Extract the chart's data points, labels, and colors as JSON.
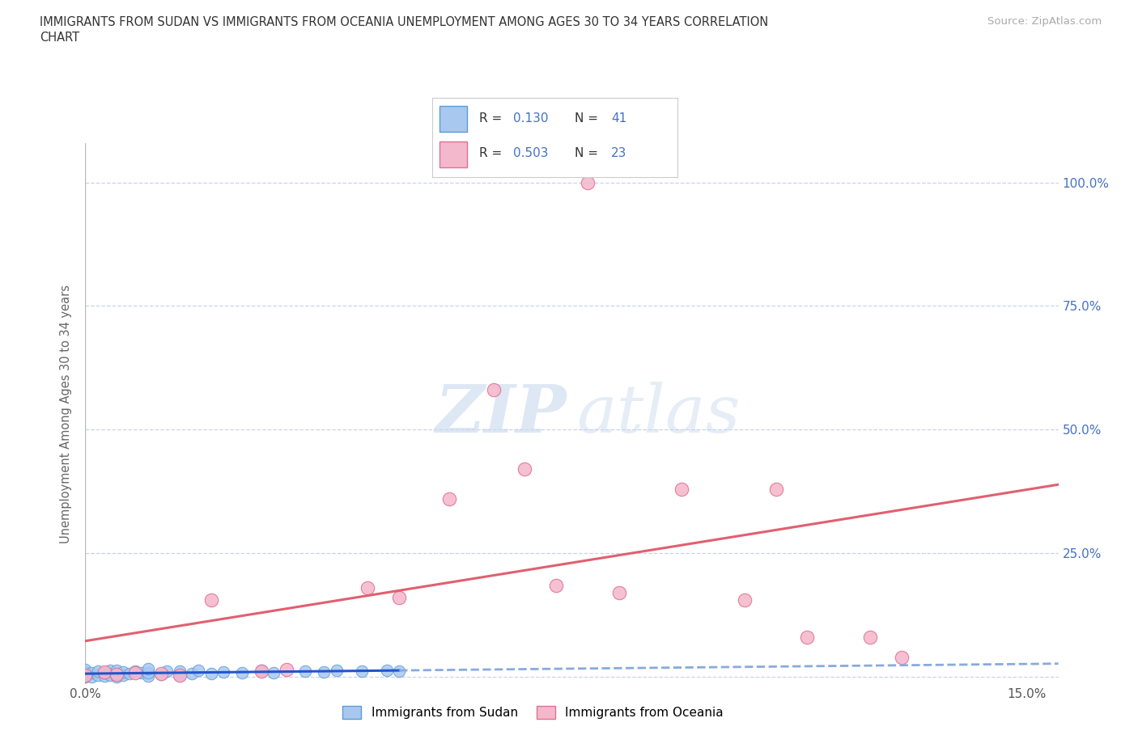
{
  "title_line1": "IMMIGRANTS FROM SUDAN VS IMMIGRANTS FROM OCEANIA UNEMPLOYMENT AMONG AGES 30 TO 34 YEARS CORRELATION",
  "title_line2": "CHART",
  "source_text": "Source: ZipAtlas.com",
  "ylabel": "Unemployment Among Ages 30 to 34 years",
  "xlim": [
    0.0,
    0.155
  ],
  "ylim": [
    -0.015,
    1.08
  ],
  "sudan_color": "#a8c8f0",
  "oceania_color": "#f4b8cc",
  "sudan_edge_color": "#5b9bd5",
  "oceania_edge_color": "#e07090",
  "trendline_sudan_solid_color": "#2255cc",
  "trendline_sudan_dash_color": "#88aadd",
  "trendline_oceania_color": "#e06070",
  "watermark_zip_color": "#c8d8ee",
  "watermark_atlas_color": "#c8d8ee",
  "r_sudan": 0.13,
  "n_sudan": 41,
  "r_oceania": 0.503,
  "n_oceania": 23,
  "sudan_x": [
    0.0,
    0.0,
    0.0,
    0.0,
    0.0,
    0.001,
    0.001,
    0.002,
    0.002,
    0.003,
    0.003,
    0.004,
    0.004,
    0.005,
    0.005,
    0.005,
    0.006,
    0.006,
    0.007,
    0.008,
    0.009,
    0.01,
    0.01,
    0.01,
    0.012,
    0.013,
    0.015,
    0.015,
    0.017,
    0.018,
    0.02,
    0.022,
    0.025,
    0.028,
    0.03,
    0.035,
    0.038,
    0.04,
    0.044,
    0.048,
    0.05
  ],
  "sudan_y": [
    0.0,
    0.003,
    0.006,
    0.01,
    0.015,
    0.001,
    0.008,
    0.003,
    0.012,
    0.002,
    0.009,
    0.004,
    0.013,
    0.0,
    0.007,
    0.014,
    0.003,
    0.01,
    0.006,
    0.011,
    0.008,
    0.002,
    0.009,
    0.016,
    0.005,
    0.012,
    0.004,
    0.011,
    0.007,
    0.013,
    0.006,
    0.01,
    0.008,
    0.014,
    0.009,
    0.012,
    0.01,
    0.013,
    0.011,
    0.014,
    0.012
  ],
  "oceania_x": [
    0.0,
    0.003,
    0.005,
    0.008,
    0.012,
    0.015,
    0.02,
    0.028,
    0.032,
    0.045,
    0.05,
    0.058,
    0.065,
    0.07,
    0.075,
    0.08,
    0.085,
    0.095,
    0.105,
    0.11,
    0.115,
    0.125,
    0.13
  ],
  "oceania_y": [
    0.003,
    0.01,
    0.005,
    0.008,
    0.006,
    0.003,
    0.155,
    0.012,
    0.015,
    0.18,
    0.16,
    0.36,
    0.58,
    0.42,
    0.185,
    1.0,
    0.17,
    0.38,
    0.155,
    0.38,
    0.08,
    0.08,
    0.04
  ],
  "grid_color": "#c8d4e8",
  "y_ticks": [
    0.0,
    0.25,
    0.5,
    0.75,
    1.0
  ],
  "y_tick_labels": [
    "",
    "25.0%",
    "50.0%",
    "75.0%",
    "100.0%"
  ],
  "background_color": "#ffffff",
  "legend_sudan_label": "Immigrants from Sudan",
  "legend_oceania_label": "Immigrants from Oceania"
}
